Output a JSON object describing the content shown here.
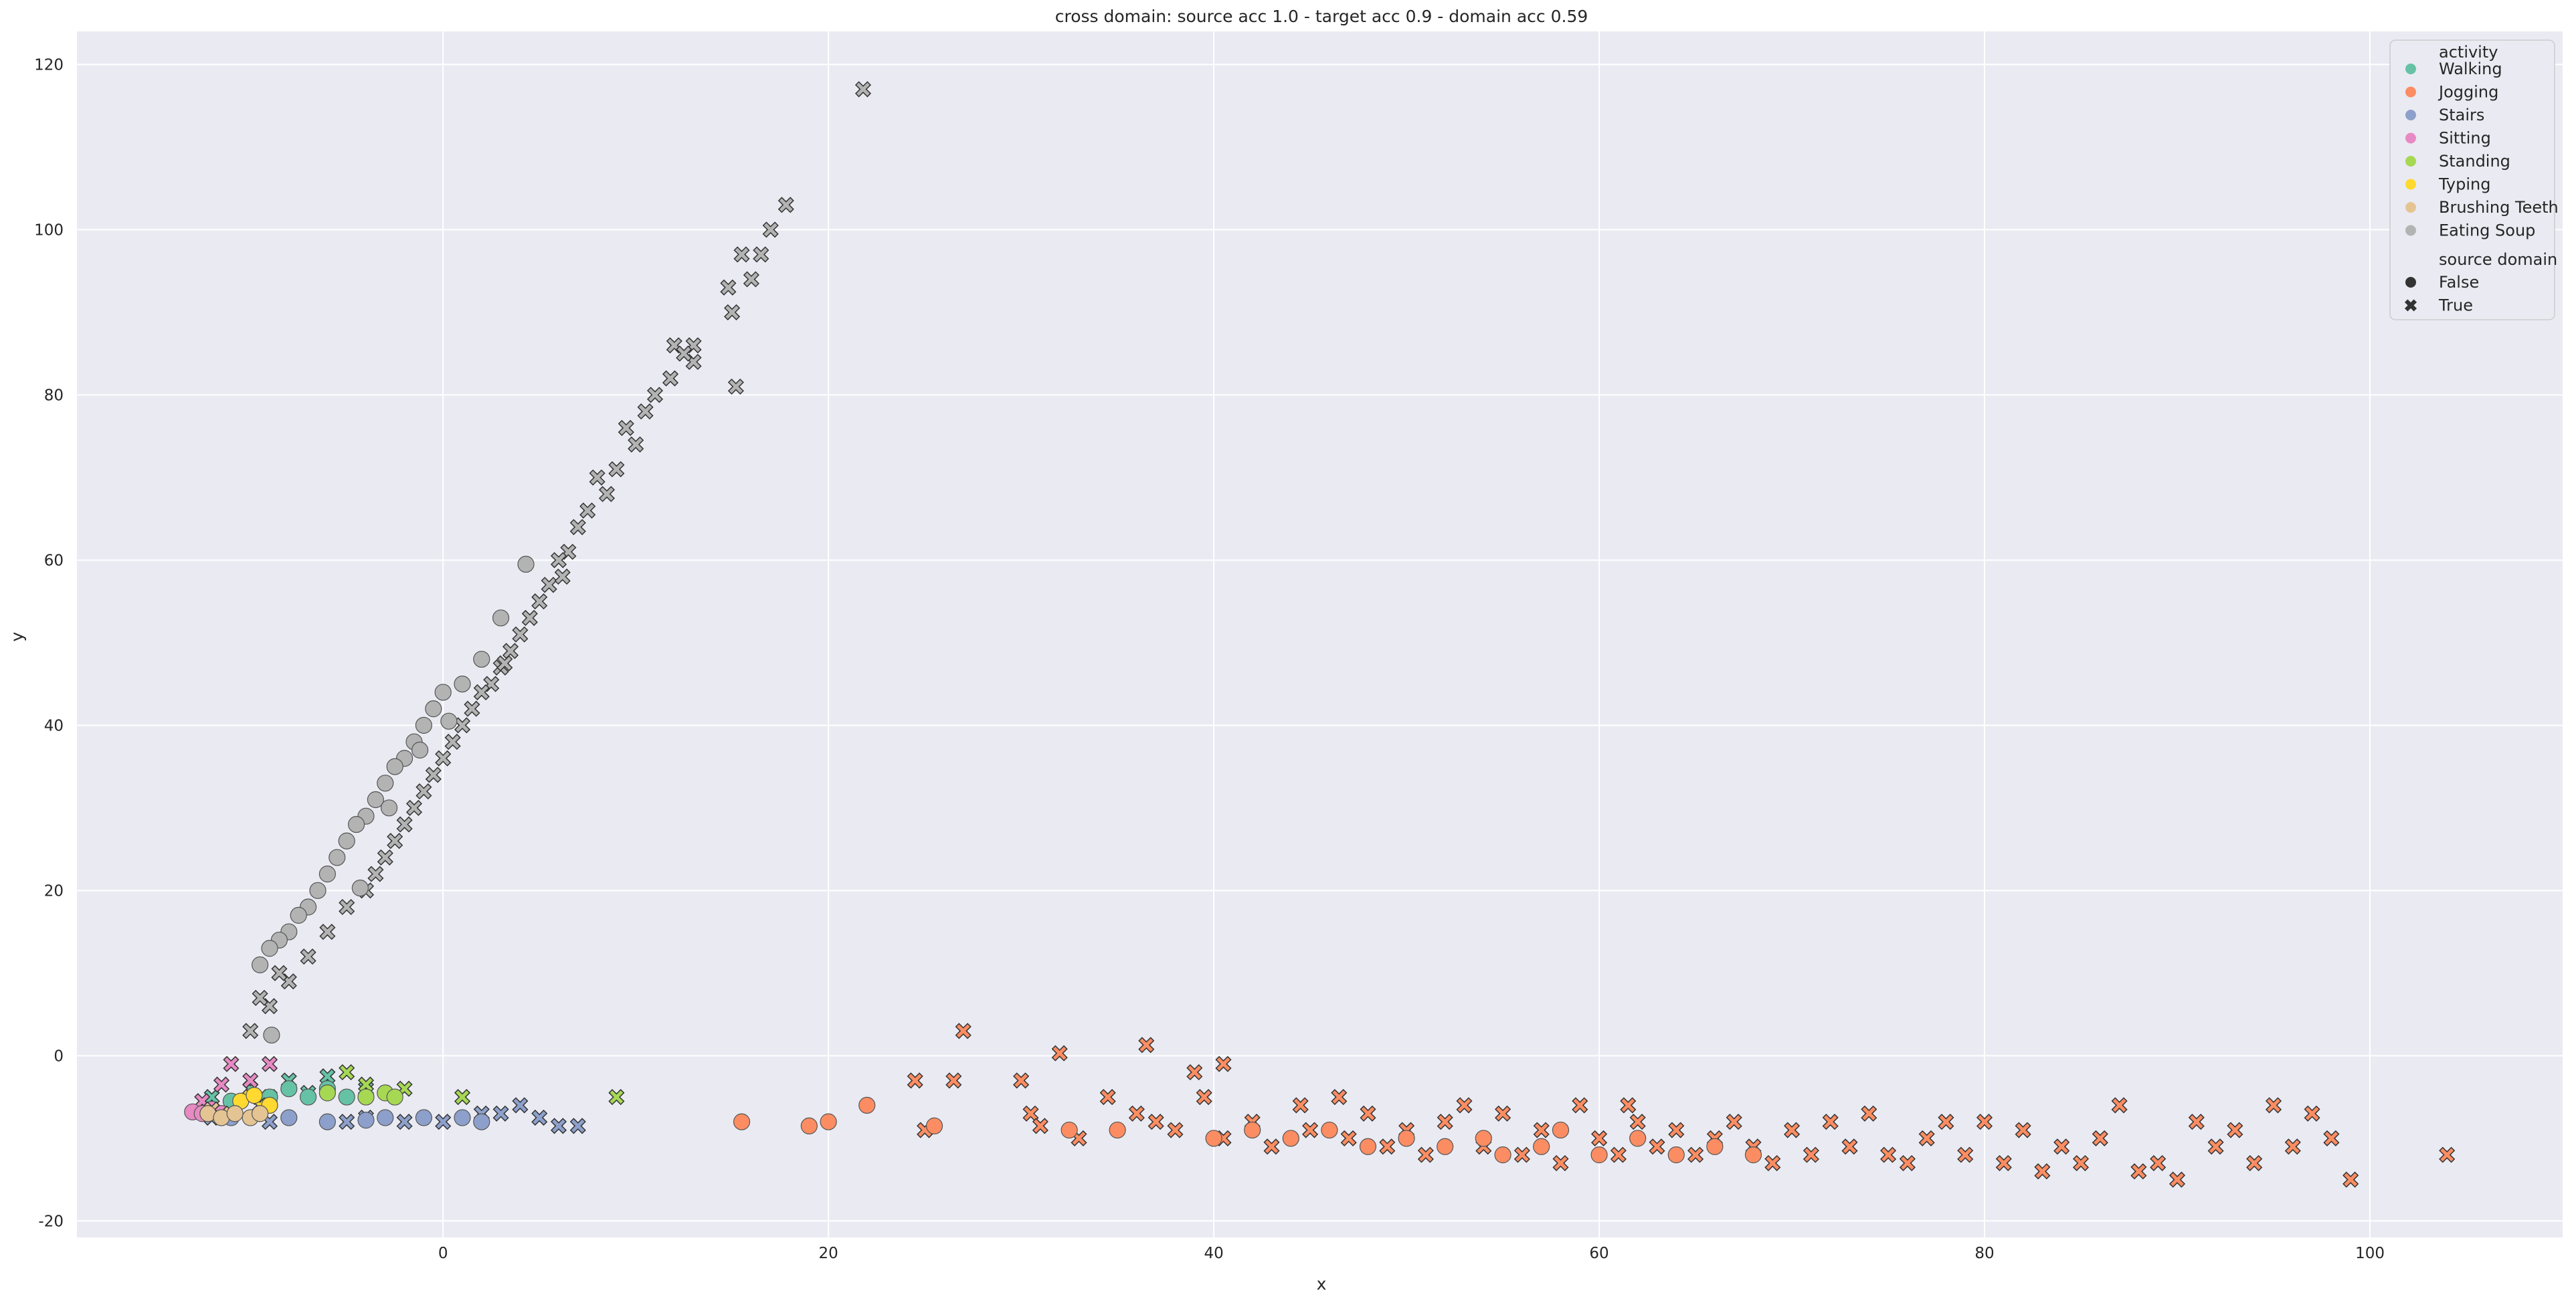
{
  "chart_data": {
    "type": "scatter",
    "title": "cross domain: source acc 1.0 - target acc 0.9 - domain acc 0.59",
    "xlabel": "x",
    "ylabel": "y",
    "xlim": [
      -19,
      110
    ],
    "ylim": [
      -22,
      124
    ],
    "xticks": [
      0,
      20,
      40,
      60,
      80,
      100
    ],
    "yticks": [
      -20,
      0,
      20,
      40,
      60,
      80,
      100,
      120
    ],
    "grid": true,
    "background": "#eaeaf2",
    "legend": {
      "placement": "upper right",
      "hue_title": "activity",
      "style_title": "source domain",
      "activities": [
        {
          "name": "Walking",
          "color": "#66c2a5"
        },
        {
          "name": "Jogging",
          "color": "#fc8d62"
        },
        {
          "name": "Stairs",
          "color": "#8da0cb"
        },
        {
          "name": "Sitting",
          "color": "#e78ac3"
        },
        {
          "name": "Standing",
          "color": "#a6d854"
        },
        {
          "name": "Typing",
          "color": "#ffd92f"
        },
        {
          "name": "Brushing Teeth",
          "color": "#e5c494"
        },
        {
          "name": "Eating Soup",
          "color": "#b3b3b3"
        }
      ],
      "domains": [
        {
          "name": "False",
          "marker": "circle"
        },
        {
          "name": "True",
          "marker": "x"
        }
      ]
    },
    "series": [
      {
        "activity": "Eating Soup",
        "source": true,
        "points": [
          [
            21.8,
            117
          ],
          [
            17.8,
            103
          ],
          [
            17,
            100
          ],
          [
            16.5,
            97
          ],
          [
            16,
            94
          ],
          [
            15.5,
            97
          ],
          [
            15,
            90
          ],
          [
            14.8,
            93
          ],
          [
            13,
            86
          ],
          [
            13,
            84
          ],
          [
            12,
            86
          ],
          [
            11.8,
            82
          ],
          [
            11,
            80
          ],
          [
            10.5,
            78
          ],
          [
            10,
            74
          ],
          [
            9.5,
            76
          ],
          [
            9,
            71
          ],
          [
            8.5,
            68
          ],
          [
            8,
            70
          ],
          [
            7.5,
            66
          ],
          [
            7,
            64
          ],
          [
            6.5,
            61
          ],
          [
            6,
            60
          ],
          [
            5.5,
            57
          ],
          [
            5,
            55
          ],
          [
            4.5,
            53
          ],
          [
            4,
            51
          ],
          [
            3.5,
            49
          ],
          [
            3,
            47
          ],
          [
            2.5,
            45
          ],
          [
            2,
            44
          ],
          [
            1.5,
            42
          ],
          [
            1,
            40
          ],
          [
            0.5,
            38
          ],
          [
            0,
            36
          ],
          [
            -0.5,
            34
          ],
          [
            -1,
            32
          ],
          [
            -1.5,
            30
          ],
          [
            -2,
            28
          ],
          [
            -2.5,
            26
          ],
          [
            -3,
            24
          ],
          [
            -3.5,
            22
          ],
          [
            -4,
            20
          ],
          [
            -5,
            18
          ],
          [
            -6,
            15
          ],
          [
            -7,
            12
          ],
          [
            -8,
            9
          ],
          [
            -9,
            6
          ],
          [
            -10,
            3
          ],
          [
            -9.5,
            7
          ],
          [
            -8.5,
            10
          ],
          [
            12.5,
            85
          ],
          [
            15.2,
            81
          ],
          [
            3.2,
            47.5
          ],
          [
            6.2,
            58
          ]
        ]
      },
      {
        "activity": "Eating Soup",
        "source": false,
        "points": [
          [
            4.3,
            59.5
          ],
          [
            3,
            53
          ],
          [
            2,
            48
          ],
          [
            1,
            45
          ],
          [
            0,
            44
          ],
          [
            -0.5,
            42
          ],
          [
            -1,
            40
          ],
          [
            -1.5,
            38
          ],
          [
            -2,
            36
          ],
          [
            -2.5,
            35
          ],
          [
            -3,
            33
          ],
          [
            -3.5,
            31
          ],
          [
            -4,
            29
          ],
          [
            -4.5,
            28
          ],
          [
            -5,
            26
          ],
          [
            -5.5,
            24
          ],
          [
            -6,
            22
          ],
          [
            -6.5,
            20
          ],
          [
            -7,
            18
          ],
          [
            -7.5,
            17
          ],
          [
            -8,
            15
          ],
          [
            -8.5,
            14
          ],
          [
            -9,
            13
          ],
          [
            -9.5,
            11
          ],
          [
            -8.9,
            2.5
          ],
          [
            -4.3,
            20.3
          ],
          [
            -2.8,
            30
          ],
          [
            -1.2,
            37
          ],
          [
            0.3,
            40.5
          ]
        ]
      },
      {
        "activity": "Jogging",
        "source": true,
        "points": [
          [
            27,
            3
          ],
          [
            32,
            0.3
          ],
          [
            36.5,
            1.3
          ],
          [
            40.5,
            -1
          ],
          [
            39,
            -2
          ],
          [
            24.5,
            -3
          ],
          [
            26.5,
            -3
          ],
          [
            30,
            -3
          ],
          [
            25,
            -9
          ],
          [
            30.5,
            -7
          ],
          [
            31,
            -8.5
          ],
          [
            33,
            -10
          ],
          [
            34.5,
            -5
          ],
          [
            36,
            -7
          ],
          [
            37,
            -8
          ],
          [
            38,
            -9
          ],
          [
            39.5,
            -5
          ],
          [
            40.5,
            -10
          ],
          [
            42,
            -8
          ],
          [
            43,
            -11
          ],
          [
            44.5,
            -6
          ],
          [
            45,
            -9
          ],
          [
            46.5,
            -5
          ],
          [
            47,
            -10
          ],
          [
            48,
            -7
          ],
          [
            49,
            -11
          ],
          [
            50,
            -9
          ],
          [
            51,
            -12
          ],
          [
            52,
            -8
          ],
          [
            53,
            -6
          ],
          [
            54,
            -11
          ],
          [
            55,
            -7
          ],
          [
            56,
            -12
          ],
          [
            57,
            -9
          ],
          [
            58,
            -13
          ],
          [
            59,
            -6
          ],
          [
            60,
            -10
          ],
          [
            61,
            -12
          ],
          [
            61.5,
            -6
          ],
          [
            62,
            -8
          ],
          [
            63,
            -11
          ],
          [
            64,
            -9
          ],
          [
            65,
            -12
          ],
          [
            66,
            -10
          ],
          [
            67,
            -8
          ],
          [
            68,
            -11
          ],
          [
            69,
            -13
          ],
          [
            70,
            -9
          ],
          [
            71,
            -12
          ],
          [
            72,
            -8
          ],
          [
            73,
            -11
          ],
          [
            74,
            -7
          ],
          [
            75,
            -12
          ],
          [
            76,
            -13
          ],
          [
            77,
            -10
          ],
          [
            78,
            -8
          ],
          [
            79,
            -12
          ],
          [
            80,
            -8
          ],
          [
            81,
            -13
          ],
          [
            82,
            -9
          ],
          [
            83,
            -14
          ],
          [
            84,
            -11
          ],
          [
            85,
            -13
          ],
          [
            86,
            -10
          ],
          [
            87,
            -6
          ],
          [
            88,
            -14
          ],
          [
            89,
            -13
          ],
          [
            90,
            -15
          ],
          [
            91,
            -8
          ],
          [
            92,
            -11
          ],
          [
            93,
            -9
          ],
          [
            94,
            -13
          ],
          [
            95,
            -6
          ],
          [
            96,
            -11
          ],
          [
            97,
            -7
          ],
          [
            98,
            -10
          ],
          [
            99,
            -15
          ],
          [
            104,
            -12
          ]
        ]
      },
      {
        "activity": "Jogging",
        "source": false,
        "points": [
          [
            15.5,
            -8
          ],
          [
            19,
            -8.5
          ],
          [
            20,
            -8
          ],
          [
            22,
            -6
          ],
          [
            25.5,
            -8.5
          ],
          [
            32.5,
            -9
          ],
          [
            35,
            -9
          ],
          [
            40,
            -10
          ],
          [
            42,
            -9
          ],
          [
            44,
            -10
          ],
          [
            46,
            -9
          ],
          [
            48,
            -11
          ],
          [
            50,
            -10
          ],
          [
            52,
            -11
          ],
          [
            54,
            -10
          ],
          [
            55,
            -12
          ],
          [
            57,
            -11
          ],
          [
            58,
            -9
          ],
          [
            60,
            -12
          ],
          [
            62,
            -10
          ],
          [
            64,
            -12
          ],
          [
            66,
            -11
          ],
          [
            68,
            -12
          ]
        ]
      },
      {
        "activity": "Walking",
        "source": true,
        "points": [
          [
            -12,
            -5
          ],
          [
            -10,
            -4
          ],
          [
            -8,
            -3
          ],
          [
            -6,
            -2.5
          ],
          [
            -4,
            -4
          ],
          [
            -9,
            -5
          ],
          [
            -7,
            -4.5
          ]
        ]
      },
      {
        "activity": "Walking",
        "source": false,
        "points": [
          [
            -11,
            -5.5
          ],
          [
            -9,
            -5
          ],
          [
            -8,
            -4
          ],
          [
            -7,
            -5
          ],
          [
            -6,
            -4
          ],
          [
            -5,
            -5
          ]
        ]
      },
      {
        "activity": "Stairs",
        "source": true,
        "points": [
          [
            -12,
            -7.5
          ],
          [
            -9,
            -8
          ],
          [
            -5,
            -8
          ],
          [
            -2,
            -8
          ],
          [
            0,
            -8
          ],
          [
            2,
            -7
          ],
          [
            3,
            -7
          ],
          [
            4,
            -6
          ],
          [
            5,
            -7.5
          ],
          [
            6,
            -8.5
          ],
          [
            7,
            -8.5
          ],
          [
            -4,
            -7.5
          ]
        ]
      },
      {
        "activity": "Stairs",
        "source": false,
        "points": [
          [
            -11,
            -7.5
          ],
          [
            -8,
            -7.5
          ],
          [
            -6,
            -8
          ],
          [
            -4,
            -7.8
          ],
          [
            -3,
            -7.5
          ],
          [
            -1,
            -7.5
          ],
          [
            1,
            -7.5
          ],
          [
            2,
            -8
          ]
        ]
      },
      {
        "activity": "Sitting",
        "source": true,
        "points": [
          [
            -11,
            -1
          ],
          [
            -11.5,
            -3.5
          ],
          [
            -10,
            -3
          ],
          [
            -12.5,
            -5.5
          ],
          [
            -9,
            -1
          ]
        ]
      },
      {
        "activity": "Sitting",
        "source": false,
        "points": [
          [
            -13,
            -6.8
          ],
          [
            -12.5,
            -7
          ],
          [
            -12,
            -6.5
          ],
          [
            -11.5,
            -7
          ]
        ]
      },
      {
        "activity": "Standing",
        "source": true,
        "points": [
          [
            -5,
            -2
          ],
          [
            -4,
            -3.5
          ],
          [
            -2,
            -4
          ],
          [
            1,
            -5
          ],
          [
            9,
            -5
          ]
        ]
      },
      {
        "activity": "Standing",
        "source": false,
        "points": [
          [
            -6,
            -4.5
          ],
          [
            -4,
            -5
          ],
          [
            -3,
            -4.5
          ],
          [
            -2.5,
            -5
          ]
        ]
      },
      {
        "activity": "Typing",
        "source": true,
        "points": [
          [
            -10,
            -5
          ],
          [
            -9.5,
            -6
          ]
        ]
      },
      {
        "activity": "Typing",
        "source": false,
        "points": [
          [
            -10.5,
            -5.5
          ],
          [
            -9.8,
            -4.8
          ],
          [
            -9,
            -6
          ]
        ]
      },
      {
        "activity": "Brushing Teeth",
        "source": true,
        "points": [
          [
            -12,
            -6.5
          ],
          [
            -11,
            -7
          ]
        ]
      },
      {
        "activity": "Brushing Teeth",
        "source": false,
        "points": [
          [
            -12.2,
            -7
          ],
          [
            -11.5,
            -7.5
          ],
          [
            -10.8,
            -7
          ],
          [
            -10,
            -7.5
          ],
          [
            -9.5,
            -7
          ]
        ]
      }
    ]
  }
}
